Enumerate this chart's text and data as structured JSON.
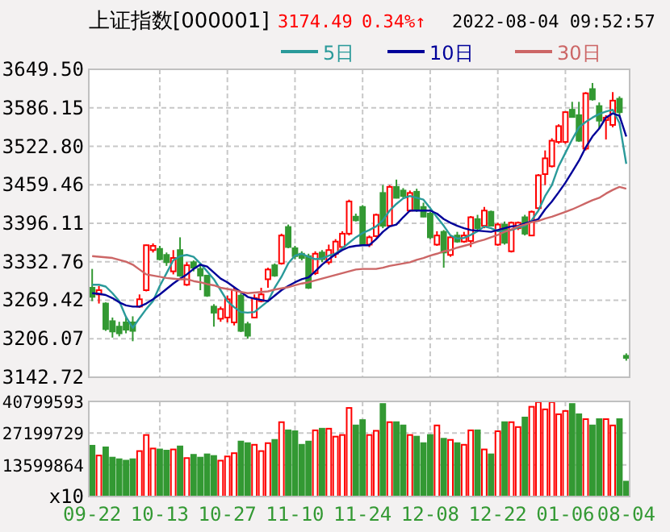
{
  "chart_data": [
    {
      "type": "candlestick",
      "title": "上证指数[000001]",
      "annotations": [
        "3174.49",
        "0.34%↑",
        "2022-08-04 09:52:57"
      ],
      "categories": [
        null,
        null,
        null,
        null,
        null,
        null,
        null,
        null,
        null,
        null,
        null,
        null,
        null,
        null,
        null,
        null,
        null,
        null,
        null,
        null,
        null,
        null,
        null,
        null,
        null,
        null,
        null,
        null,
        null,
        null,
        null,
        null,
        null,
        null,
        null,
        null,
        null,
        null,
        null,
        null,
        null,
        null,
        null,
        null,
        null,
        null,
        null,
        null,
        null,
        null,
        null,
        null,
        null,
        null,
        null,
        null,
        null,
        null,
        null,
        null,
        null,
        null,
        null,
        null,
        null,
        null,
        null,
        null,
        null,
        null,
        null,
        null,
        null,
        null,
        null,
        null,
        null,
        null,
        null,
        null
      ],
      "ohlc": [
        [
          3290,
          3321,
          3268,
          3275
        ],
        [
          3279,
          3293,
          3264,
          3286
        ],
        [
          3264,
          3266,
          3219,
          3222
        ],
        [
          3235,
          3241,
          3208,
          3218
        ],
        [
          3226,
          3234,
          3210,
          3215
        ],
        [
          3233,
          3243,
          3215,
          3221
        ],
        [
          3233,
          3243,
          3202,
          3219
        ],
        [
          3259,
          3279,
          3257,
          3271
        ],
        [
          3286,
          3361,
          3284,
          3360
        ],
        [
          3352,
          3363,
          3348,
          3359
        ],
        [
          3354,
          3359,
          3335,
          3337
        ],
        [
          3344,
          3348,
          3326,
          3332
        ],
        [
          3317,
          3352,
          3312,
          3339
        ],
        [
          3352,
          3373,
          3308,
          3310
        ],
        [
          3295,
          3332,
          3293,
          3327
        ],
        [
          3332,
          3335,
          3317,
          3323
        ],
        [
          3321,
          3330,
          3286,
          3310
        ],
        [
          3310,
          3311,
          3275,
          3277
        ],
        [
          3259,
          3263,
          3226,
          3249
        ],
        [
          3239,
          3259,
          3234,
          3255
        ],
        [
          3241,
          3277,
          3233,
          3271
        ],
        [
          3233,
          3290,
          3228,
          3286
        ],
        [
          3277,
          3281,
          3217,
          3219
        ],
        [
          3230,
          3234,
          3206,
          3211
        ],
        [
          3241,
          3279,
          3240,
          3273
        ],
        [
          3268,
          3290,
          3266,
          3279
        ],
        [
          3304,
          3323,
          3290,
          3320
        ],
        [
          3327,
          3330,
          3308,
          3310
        ],
        [
          3330,
          3379,
          3328,
          3376
        ],
        [
          3390,
          3394,
          3355,
          3357
        ],
        [
          3355,
          3359,
          3337,
          3342
        ],
        [
          3346,
          3350,
          3335,
          3339
        ],
        [
          3342,
          3346,
          3288,
          3290
        ],
        [
          3314,
          3350,
          3311,
          3346
        ],
        [
          3348,
          3352,
          3332,
          3337
        ],
        [
          3332,
          3361,
          3328,
          3352
        ],
        [
          3346,
          3370,
          3339,
          3366
        ],
        [
          3357,
          3383,
          3352,
          3379
        ],
        [
          3379,
          3435,
          3376,
          3432
        ],
        [
          3407,
          3412,
          3399,
          3401
        ],
        [
          3423,
          3426,
          3359,
          3361
        ],
        [
          3361,
          3376,
          3357,
          3373
        ],
        [
          3375,
          3412,
          3373,
          3410
        ],
        [
          3446,
          3459,
          3388,
          3392
        ],
        [
          3392,
          3459,
          3391,
          3456
        ],
        [
          3456,
          3468,
          3437,
          3438
        ],
        [
          3450,
          3454,
          3438,
          3441
        ],
        [
          3417,
          3450,
          3415,
          3446
        ],
        [
          3448,
          3453,
          3415,
          3419
        ],
        [
          3423,
          3430,
          3406,
          3407
        ],
        [
          3412,
          3415,
          3370,
          3373
        ],
        [
          3361,
          3383,
          3359,
          3376
        ],
        [
          3382,
          3385,
          3323,
          3348
        ],
        [
          3344,
          3376,
          3341,
          3373
        ],
        [
          3376,
          3382,
          3364,
          3366
        ],
        [
          3366,
          3382,
          3364,
          3376
        ],
        [
          3367,
          3408,
          3357,
          3406
        ],
        [
          3403,
          3410,
          3383,
          3388
        ],
        [
          3392,
          3423,
          3388,
          3417
        ],
        [
          3415,
          3417,
          3391,
          3392
        ],
        [
          3361,
          3397,
          3359,
          3394
        ],
        [
          3394,
          3399,
          3361,
          3364
        ],
        [
          3350,
          3399,
          3348,
          3397
        ],
        [
          3388,
          3399,
          3385,
          3397
        ],
        [
          3406,
          3410,
          3376,
          3379
        ],
        [
          3376,
          3417,
          3375,
          3415
        ],
        [
          3421,
          3477,
          3419,
          3475
        ],
        [
          3477,
          3516,
          3459,
          3503
        ],
        [
          3490,
          3536,
          3488,
          3532
        ],
        [
          3530,
          3559,
          3527,
          3556
        ],
        [
          3530,
          3580,
          3527,
          3579
        ],
        [
          3583,
          3596,
          3570,
          3571
        ],
        [
          3574,
          3596,
          3530,
          3532
        ],
        [
          3519,
          3612,
          3516,
          3610
        ],
        [
          3617,
          3627,
          3598,
          3600
        ],
        [
          3589,
          3595,
          3552,
          3565
        ],
        [
          3566,
          3574,
          3534,
          3570
        ],
        [
          3558,
          3612,
          3554,
          3598
        ],
        [
          3601,
          3605,
          3570,
          3579
        ],
        [
          3178,
          3182,
          3170,
          3174.49
        ]
      ],
      "colors": [
        "#339933",
        "#ff0000",
        "#339933",
        "#339933",
        "#339933",
        "#339933",
        "#339933",
        "#ff0000",
        "#ff0000",
        "#ff0000",
        "#339933",
        "#339933",
        "#ff0000",
        "#339933",
        "#ff0000",
        "#339933",
        "#339933",
        "#339933",
        "#339933",
        "#ff0000",
        "#ff0000",
        "#ff0000",
        "#339933",
        "#339933",
        "#ff0000",
        "#ff0000",
        "#ff0000",
        "#339933",
        "#ff0000",
        "#339933",
        "#339933",
        "#339933",
        "#339933",
        "#ff0000",
        "#339933",
        "#ff0000",
        "#ff0000",
        "#ff0000",
        "#ff0000",
        "#339933",
        "#339933",
        "#ff0000",
        "#ff0000",
        "#339933",
        "#ff0000",
        "#339933",
        "#339933",
        "#ff0000",
        "#339933",
        "#339933",
        "#339933",
        "#ff0000",
        "#339933",
        "#ff0000",
        "#339933",
        "#ff0000",
        "#ff0000",
        "#339933",
        "#ff0000",
        "#339933",
        "#ff0000",
        "#339933",
        "#ff0000",
        "#ff0000",
        "#339933",
        "#ff0000",
        "#ff0000",
        "#ff0000",
        "#ff0000",
        "#ff0000",
        "#ff0000",
        "#339933",
        "#339933",
        "#ff0000",
        "#339933",
        "#339933",
        "#ff0000",
        "#ff0000",
        "#339933",
        "#339933"
      ],
      "series": [
        {
          "name": "5日",
          "type": "line",
          "color": "#2a9a9a",
          "values": [
            3295,
            3295,
            3292,
            3281,
            3268,
            3242,
            3224,
            3240,
            3255,
            3268,
            3293,
            3314,
            3335,
            3342,
            3344,
            3341,
            3330,
            3317,
            3304,
            3286,
            3268,
            3258,
            3250,
            3249,
            3250,
            3259,
            3268,
            3290,
            3308,
            3330,
            3343,
            3346,
            3341,
            3337,
            3338,
            3343,
            3346,
            3355,
            3364,
            3373,
            3380,
            3385,
            3391,
            3401,
            3417,
            3428,
            3437,
            3441,
            3438,
            3435,
            3421,
            3406,
            3392,
            3376,
            3371,
            3372,
            3377,
            3383,
            3391,
            3388,
            3383,
            3383,
            3385,
            3389,
            3392,
            3401,
            3417,
            3441,
            3459,
            3490,
            3512,
            3534,
            3554,
            3563,
            3570,
            3576,
            3580,
            3583,
            3561,
            3494
          ]
        },
        {
          "name": "10日",
          "type": "line",
          "color": "#000099",
          "values": [
            3281,
            3280,
            3278,
            3273,
            3266,
            3261,
            3259,
            3259,
            3264,
            3271,
            3279,
            3288,
            3297,
            3305,
            3312,
            3321,
            3328,
            3325,
            3315,
            3305,
            3299,
            3291,
            3283,
            3275,
            3272,
            3270,
            3268,
            3277,
            3286,
            3293,
            3299,
            3304,
            3307,
            3317,
            3328,
            3337,
            3345,
            3352,
            3357,
            3359,
            3360,
            3360,
            3370,
            3382,
            3391,
            3394,
            3406,
            3417,
            3417,
            3417,
            3417,
            3412,
            3403,
            3397,
            3392,
            3388,
            3385,
            3384,
            3383,
            3382,
            3385,
            3388,
            3391,
            3392,
            3396,
            3399,
            3403,
            3419,
            3432,
            3447,
            3463,
            3481,
            3499,
            3521,
            3539,
            3552,
            3570,
            3577,
            3573,
            3539
          ]
        },
        {
          "name": "30日",
          "type": "line",
          "color": "#cc6666",
          "values": [
            3342,
            3341,
            3340,
            3339,
            3336,
            3333,
            3328,
            3320,
            3312,
            3310,
            3308,
            3306,
            3305,
            3304,
            3304,
            3301,
            3299,
            3296,
            3294,
            3290,
            3288,
            3286,
            3283,
            3281,
            3282,
            3283,
            3284,
            3287,
            3289,
            3291,
            3294,
            3297,
            3299,
            3302,
            3305,
            3308,
            3311,
            3314,
            3317,
            3320,
            3321,
            3321,
            3321,
            3323,
            3326,
            3328,
            3330,
            3332,
            3336,
            3339,
            3343,
            3346,
            3350,
            3352,
            3356,
            3359,
            3362,
            3366,
            3369,
            3373,
            3377,
            3382,
            3386,
            3391,
            3394,
            3398,
            3400,
            3404,
            3407,
            3411,
            3415,
            3419,
            3424,
            3429,
            3434,
            3438,
            3445,
            3451,
            3456,
            3453
          ]
        }
      ],
      "ylim": [
        3142.72,
        3649.5
      ],
      "yticks": [
        {
          "value": 3142.72,
          "label": "3142.72"
        },
        {
          "value": 3206.07,
          "label": "3206.07"
        },
        {
          "value": 3269.42,
          "label": "3269.42"
        },
        {
          "value": 3332.76,
          "label": "3332.76"
        },
        {
          "value": 3396.11,
          "label": "3396.11"
        },
        {
          "value": 3459.46,
          "label": "3459.46"
        },
        {
          "value": 3522.8,
          "label": "3522.80"
        },
        {
          "value": 3586.15,
          "label": "3586.15"
        },
        {
          "value": 3649.5,
          "label": "3649.50"
        }
      ],
      "grid": true,
      "legend": "top right",
      "tick_labels": "y"
    },
    {
      "type": "bar",
      "categories": [
        "09-22",
        null,
        null,
        null,
        null,
        null,
        null,
        null,
        null,
        null,
        "10-13",
        null,
        null,
        null,
        null,
        null,
        null,
        null,
        null,
        null,
        "10-27",
        null,
        null,
        null,
        null,
        null,
        null,
        null,
        null,
        null,
        "11-10",
        null,
        null,
        null,
        null,
        null,
        null,
        null,
        null,
        null,
        "11-24",
        null,
        null,
        null,
        null,
        null,
        null,
        null,
        null,
        null,
        "12-08",
        null,
        null,
        null,
        null,
        null,
        null,
        null,
        null,
        null,
        "12-22",
        null,
        null,
        null,
        null,
        null,
        null,
        null,
        null,
        null,
        "01-06",
        null,
        null,
        null,
        null,
        null,
        null,
        null,
        null,
        "08-04"
      ],
      "values": [
        21800000,
        17600000,
        21100000,
        16700000,
        16000000,
        15400000,
        16000000,
        19500000,
        26400000,
        20600000,
        20200000,
        19700000,
        20200000,
        21500000,
        16500000,
        17900000,
        16700000,
        18100000,
        17400000,
        15400000,
        17200000,
        18600000,
        23600000,
        22900000,
        22200000,
        19500000,
        22900000,
        24300000,
        31900000,
        28400000,
        28000000,
        22200000,
        23600000,
        28400000,
        29100000,
        29100000,
        25700000,
        26400000,
        38000000,
        30500000,
        32800000,
        26400000,
        28200000,
        39700000,
        31900000,
        31900000,
        30500000,
        26400000,
        25700000,
        22900000,
        26400000,
        30500000,
        24800000,
        24300000,
        22900000,
        22200000,
        28400000,
        28400000,
        20200000,
        18100000,
        28000000,
        31900000,
        31900000,
        29800000,
        33900000,
        38500000,
        40500000,
        37400000,
        40500000,
        35300000,
        36700000,
        39700000,
        35300000,
        33200000,
        30500000,
        33200000,
        33200000,
        30500000,
        33200000,
        6400000
      ],
      "colors": [
        "#339933",
        "#ff0000",
        "#339933",
        "#339933",
        "#339933",
        "#339933",
        "#339933",
        "#ff0000",
        "#ff0000",
        "#ff0000",
        "#339933",
        "#339933",
        "#ff0000",
        "#339933",
        "#ff0000",
        "#339933",
        "#339933",
        "#339933",
        "#339933",
        "#ff0000",
        "#ff0000",
        "#ff0000",
        "#339933",
        "#339933",
        "#ff0000",
        "#ff0000",
        "#ff0000",
        "#339933",
        "#ff0000",
        "#339933",
        "#339933",
        "#339933",
        "#339933",
        "#ff0000",
        "#339933",
        "#ff0000",
        "#ff0000",
        "#ff0000",
        "#ff0000",
        "#339933",
        "#339933",
        "#ff0000",
        "#ff0000",
        "#339933",
        "#ff0000",
        "#339933",
        "#339933",
        "#ff0000",
        "#339933",
        "#339933",
        "#339933",
        "#ff0000",
        "#339933",
        "#ff0000",
        "#339933",
        "#ff0000",
        "#ff0000",
        "#339933",
        "#ff0000",
        "#339933",
        "#ff0000",
        "#339933",
        "#ff0000",
        "#ff0000",
        "#339933",
        "#ff0000",
        "#ff0000",
        "#ff0000",
        "#ff0000",
        "#ff0000",
        "#ff0000",
        "#339933",
        "#339933",
        "#ff0000",
        "#339933",
        "#339933",
        "#ff0000",
        "#ff0000",
        "#339933",
        "#339933"
      ],
      "ylim": [
        0,
        40799593
      ],
      "yticks": [
        {
          "value": 0,
          "label": "x10"
        },
        13599864,
        27199729,
        40799593
      ],
      "grid": true
    }
  ]
}
